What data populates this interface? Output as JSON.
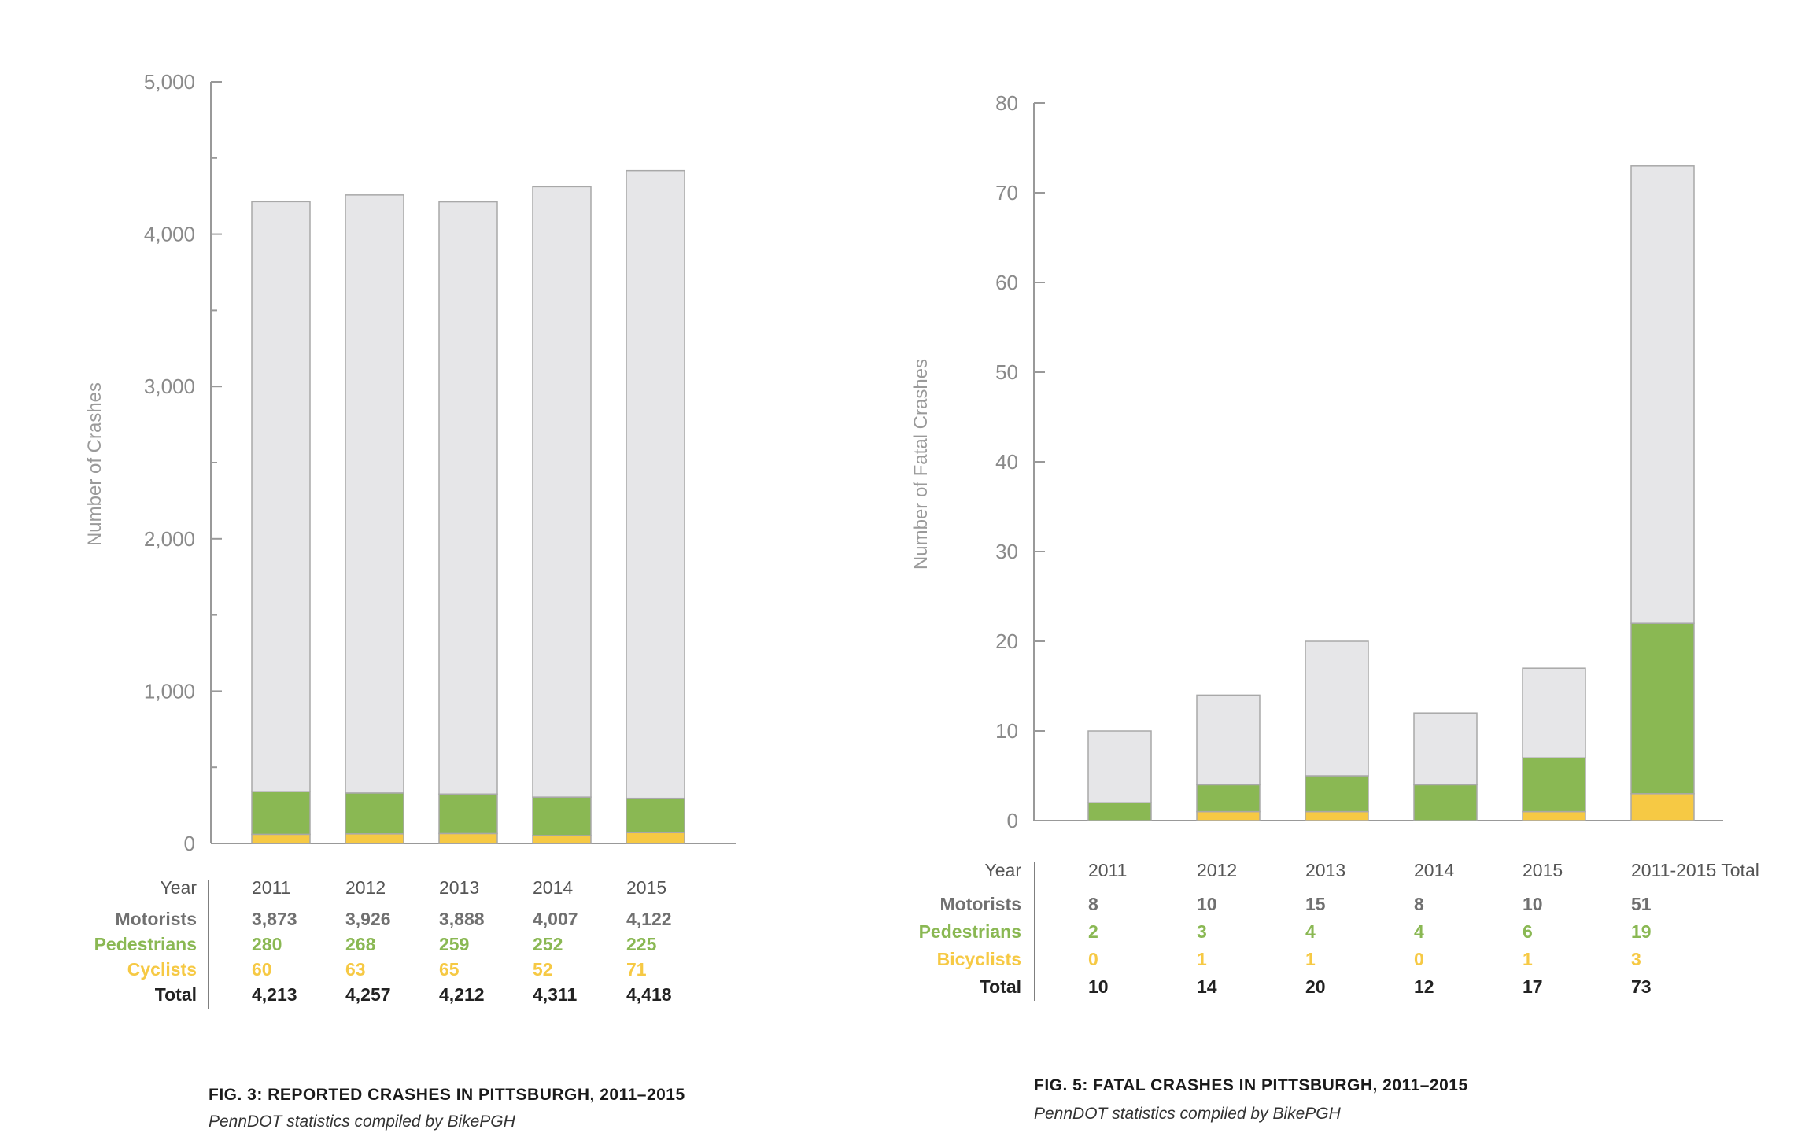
{
  "colors": {
    "motorists": "#e6e6e8",
    "pedestrians": "#8ab853",
    "cyclists": "#f6c944",
    "motorists_text": "#707070",
    "total_text": "#222222",
    "axis": "#999999",
    "bar_stroke": "#a8a8a8"
  },
  "chart_data": [
    {
      "type": "bar",
      "stacked": true,
      "categories": [
        "2011",
        "2012",
        "2013",
        "2014",
        "2015"
      ],
      "series": [
        {
          "name": "Cyclists",
          "values": [
            60,
            63,
            65,
            52,
            71
          ]
        },
        {
          "name": "Pedestrians",
          "values": [
            280,
            268,
            259,
            252,
            225
          ]
        },
        {
          "name": "Motorists",
          "values": [
            3873,
            3926,
            3888,
            4007,
            4122
          ]
        }
      ],
      "totals": [
        4213,
        4257,
        4212,
        4311,
        4418
      ],
      "ylabel": "Number of Crashes",
      "ylim": [
        0,
        5000
      ],
      "yticks": [
        "0",
        "1,000",
        "2,000",
        "3,000",
        "4,000",
        "5,000"
      ],
      "table": {
        "header": "Year",
        "rows": [
          {
            "label": "Motorists",
            "values": [
              "3,873",
              "3,926",
              "3,888",
              "4,007",
              "4,122"
            ]
          },
          {
            "label": "Pedestrians",
            "values": [
              "280",
              "268",
              "259",
              "252",
              "225"
            ]
          },
          {
            "label": "Cyclists",
            "values": [
              "60",
              "63",
              "65",
              "52",
              "71"
            ]
          },
          {
            "label": "Total",
            "values": [
              "4,213",
              "4,257",
              "4,212",
              "4,311",
              "4,418"
            ]
          }
        ]
      },
      "caption": "FIG. 3: REPORTED CRASHES IN PITTSBURGH, 2011–2015",
      "source": "PennDOT statistics compiled by BikePGH"
    },
    {
      "type": "bar",
      "stacked": true,
      "categories": [
        "2011",
        "2012",
        "2013",
        "2014",
        "2015",
        "2011-2015 Total"
      ],
      "series": [
        {
          "name": "Bicyclists",
          "values": [
            0,
            1,
            1,
            0,
            1,
            3
          ]
        },
        {
          "name": "Pedestrians",
          "values": [
            2,
            3,
            4,
            4,
            6,
            19
          ]
        },
        {
          "name": "Motorists",
          "values": [
            8,
            10,
            15,
            8,
            10,
            51
          ]
        }
      ],
      "totals": [
        10,
        14,
        20,
        12,
        17,
        73
      ],
      "ylabel": "Number of Fatal Crashes",
      "ylim": [
        0,
        80
      ],
      "yticks": [
        "0",
        "10",
        "20",
        "30",
        "40",
        "50",
        "60",
        "70",
        "80"
      ],
      "table": {
        "header": "Year",
        "rows": [
          {
            "label": "Motorists",
            "values": [
              "8",
              "10",
              "15",
              "8",
              "10",
              "51"
            ]
          },
          {
            "label": "Pedestrians",
            "values": [
              "2",
              "3",
              "4",
              "4",
              "6",
              "19"
            ]
          },
          {
            "label": "Bicyclists",
            "values": [
              "0",
              "1",
              "1",
              "0",
              "1",
              "3"
            ]
          },
          {
            "label": "Total",
            "values": [
              "10",
              "14",
              "20",
              "12",
              "17",
              "73"
            ]
          }
        ]
      },
      "caption": "FIG. 5: FATAL CRASHES IN PITTSBURGH, 2011–2015",
      "source": "PennDOT statistics compiled by BikePGH"
    }
  ]
}
